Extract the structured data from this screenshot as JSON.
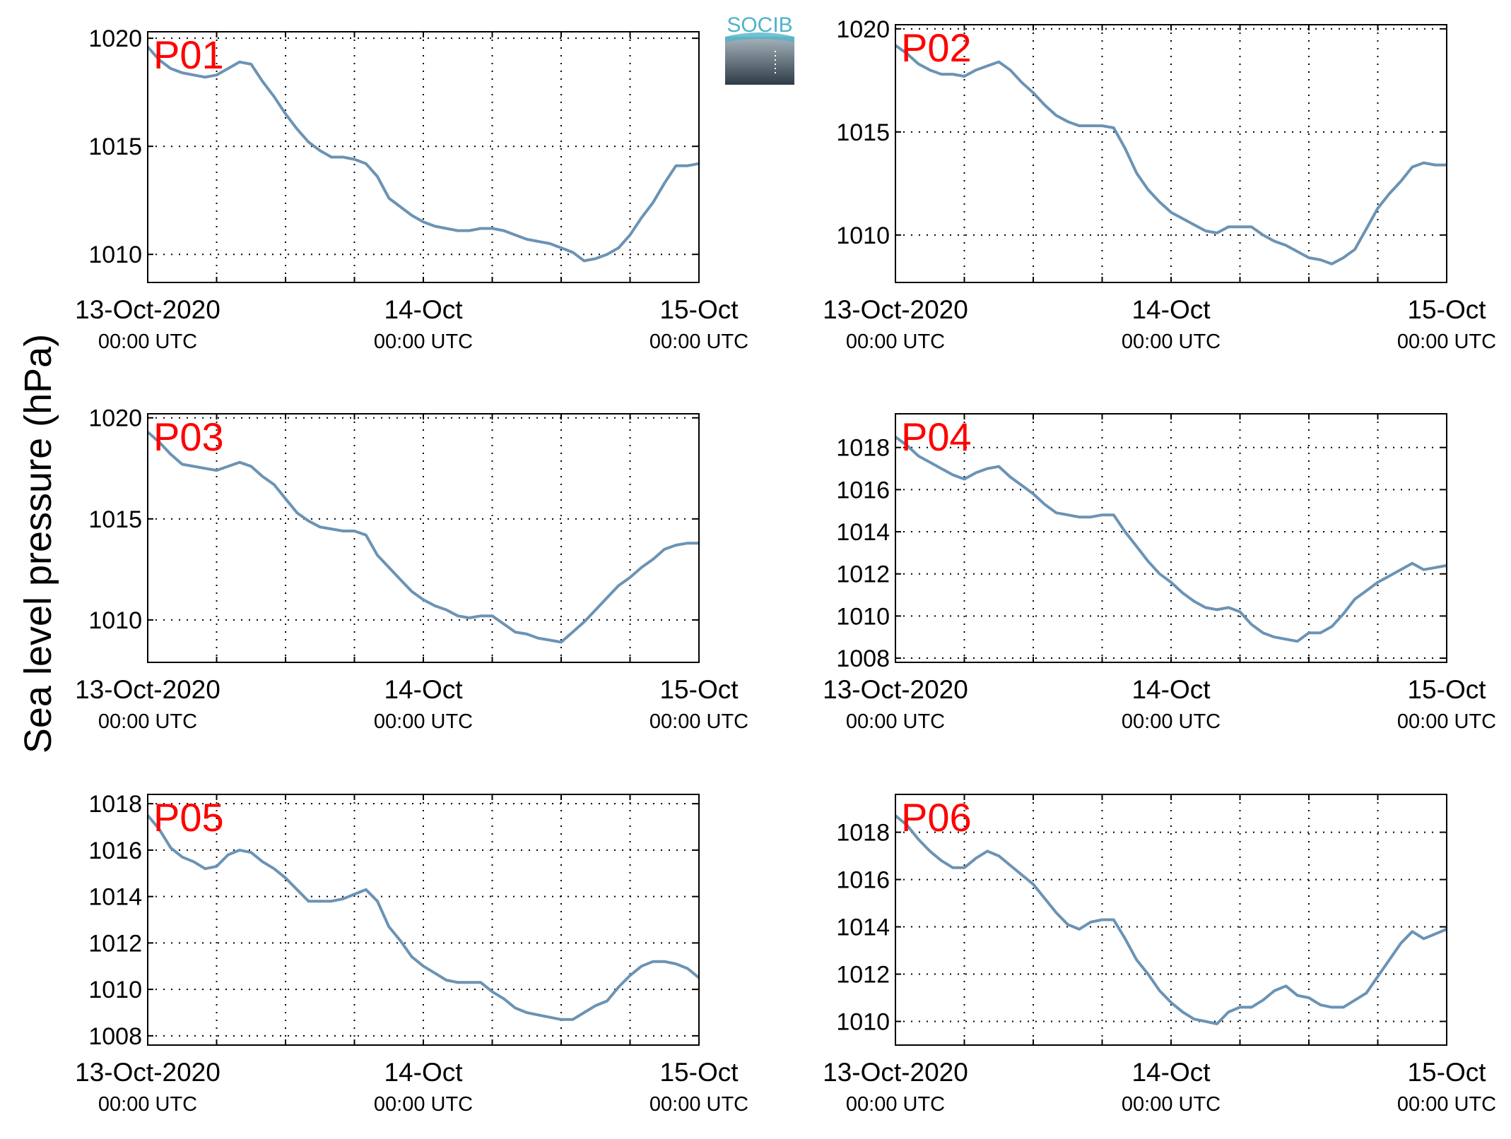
{
  "figure": {
    "ylabel": "Sea level pressure (hPa)",
    "logo_text": "SOCIB",
    "line_color": "#6b93b4",
    "panel_label_color": "#ff0000",
    "axis_color": "#000000",
    "logo_color": "#4fb3c8",
    "logo_fill": "#5f7380"
  },
  "chart_data": [
    {
      "type": "line",
      "panel_label": "P01",
      "xlim": [
        0,
        48
      ],
      "x_ticks": [
        0,
        24,
        48
      ],
      "x_tick_labels": [
        [
          "13-Oct-2020",
          "00:00 UTC"
        ],
        [
          "14-Oct",
          "00:00 UTC"
        ],
        [
          "15-Oct",
          "00:00 UTC"
        ]
      ],
      "x_grid_step_hours": 6,
      "ylim": [
        1008.7,
        1020.3
      ],
      "yticks": [
        1010,
        1015,
        1020
      ],
      "grid": true,
      "series": [
        {
          "x": [
            0,
            1,
            2,
            3,
            4,
            5,
            6,
            7,
            8,
            9,
            10,
            11,
            12,
            13,
            14,
            15,
            16,
            17,
            18,
            19,
            20,
            21,
            22,
            23,
            24,
            25,
            26,
            27,
            28,
            29,
            30,
            31,
            32,
            33,
            34,
            35,
            36,
            37,
            38,
            39,
            40,
            41,
            42,
            43,
            44,
            45,
            46,
            47,
            48
          ],
          "values": [
            1019.6,
            1019.0,
            1018.6,
            1018.4,
            1018.3,
            1018.2,
            1018.3,
            1018.6,
            1018.9,
            1018.8,
            1018.0,
            1017.3,
            1016.5,
            1015.8,
            1015.2,
            1014.8,
            1014.5,
            1014.5,
            1014.4,
            1014.2,
            1013.6,
            1012.6,
            1012.2,
            1011.8,
            1011.5,
            1011.3,
            1011.2,
            1011.1,
            1011.1,
            1011.2,
            1011.2,
            1011.1,
            1010.9,
            1010.7,
            1010.6,
            1010.5,
            1010.3,
            1010.1,
            1009.7,
            1009.8,
            1010.0,
            1010.3,
            1010.9,
            1011.7,
            1012.4,
            1013.3,
            1014.1,
            1014.1,
            1014.2
          ]
        }
      ]
    },
    {
      "type": "line",
      "panel_label": "P02",
      "xlim": [
        0,
        48
      ],
      "x_ticks": [
        0,
        24,
        48
      ],
      "x_tick_labels": [
        [
          "13-Oct-2020",
          "00:00 UTC"
        ],
        [
          "14-Oct",
          "00:00 UTC"
        ],
        [
          "15-Oct",
          "00:00 UTC"
        ]
      ],
      "x_grid_step_hours": 6,
      "ylim": [
        1007.7,
        1020.2
      ],
      "yticks": [
        1010,
        1015,
        1020
      ],
      "grid": true,
      "series": [
        {
          "x": [
            0,
            1,
            2,
            3,
            4,
            5,
            6,
            7,
            8,
            9,
            10,
            11,
            12,
            13,
            14,
            15,
            16,
            17,
            18,
            19,
            20,
            21,
            22,
            23,
            24,
            25,
            26,
            27,
            28,
            29,
            30,
            31,
            32,
            33,
            34,
            35,
            36,
            37,
            38,
            39,
            40,
            41,
            42,
            43,
            44,
            45,
            46,
            47,
            48
          ],
          "values": [
            1019.2,
            1018.8,
            1018.3,
            1018.0,
            1017.8,
            1017.8,
            1017.7,
            1018.0,
            1018.2,
            1018.4,
            1018.0,
            1017.4,
            1016.9,
            1016.3,
            1015.8,
            1015.5,
            1015.3,
            1015.3,
            1015.3,
            1015.2,
            1014.2,
            1013.0,
            1012.2,
            1011.6,
            1011.1,
            1010.8,
            1010.5,
            1010.2,
            1010.1,
            1010.4,
            1010.4,
            1010.4,
            1010.0,
            1009.7,
            1009.5,
            1009.2,
            1008.9,
            1008.8,
            1008.6,
            1008.9,
            1009.3,
            1010.3,
            1011.3,
            1012.0,
            1012.6,
            1013.3,
            1013.5,
            1013.4,
            1013.4
          ]
        }
      ]
    },
    {
      "type": "line",
      "panel_label": "P03",
      "xlim": [
        0,
        48
      ],
      "x_ticks": [
        0,
        24,
        48
      ],
      "x_tick_labels": [
        [
          "13-Oct-2020",
          "00:00 UTC"
        ],
        [
          "14-Oct",
          "00:00 UTC"
        ],
        [
          "15-Oct",
          "00:00 UTC"
        ]
      ],
      "x_grid_step_hours": 6,
      "ylim": [
        1007.9,
        1020.2
      ],
      "yticks": [
        1010,
        1015,
        1020
      ],
      "grid": true,
      "series": [
        {
          "x": [
            0,
            1,
            2,
            3,
            4,
            5,
            6,
            7,
            8,
            9,
            10,
            11,
            12,
            13,
            14,
            15,
            16,
            17,
            18,
            19,
            20,
            21,
            22,
            23,
            24,
            25,
            26,
            27,
            28,
            29,
            30,
            31,
            32,
            33,
            34,
            35,
            36,
            37,
            38,
            39,
            40,
            41,
            42,
            43,
            44,
            45,
            46,
            47,
            48
          ],
          "values": [
            1019.3,
            1018.8,
            1018.2,
            1017.7,
            1017.6,
            1017.5,
            1017.4,
            1017.6,
            1017.8,
            1017.6,
            1017.1,
            1016.7,
            1016.0,
            1015.3,
            1014.9,
            1014.6,
            1014.5,
            1014.4,
            1014.4,
            1014.2,
            1013.2,
            1012.6,
            1012.0,
            1011.4,
            1011.0,
            1010.7,
            1010.5,
            1010.2,
            1010.1,
            1010.2,
            1010.2,
            1009.8,
            1009.4,
            1009.3,
            1009.1,
            1009.0,
            1008.9,
            1009.4,
            1009.9,
            1010.5,
            1011.1,
            1011.7,
            1012.1,
            1012.6,
            1013.0,
            1013.5,
            1013.7,
            1013.8,
            1013.8
          ]
        }
      ]
    },
    {
      "type": "line",
      "panel_label": "P04",
      "xlim": [
        0,
        48
      ],
      "x_ticks": [
        0,
        24,
        48
      ],
      "x_tick_labels": [
        [
          "13-Oct-2020",
          "00:00 UTC"
        ],
        [
          "14-Oct",
          "00:00 UTC"
        ],
        [
          "15-Oct",
          "00:00 UTC"
        ]
      ],
      "x_grid_step_hours": 6,
      "ylim": [
        1007.8,
        1019.6
      ],
      "yticks": [
        1008,
        1010,
        1012,
        1014,
        1016,
        1018
      ],
      "grid": true,
      "series": [
        {
          "x": [
            0,
            1,
            2,
            3,
            4,
            5,
            6,
            7,
            8,
            9,
            10,
            11,
            12,
            13,
            14,
            15,
            16,
            17,
            18,
            19,
            20,
            21,
            22,
            23,
            24,
            25,
            26,
            27,
            28,
            29,
            30,
            31,
            32,
            33,
            34,
            35,
            36,
            37,
            38,
            39,
            40,
            41,
            42,
            43,
            44,
            45,
            46,
            47,
            48
          ],
          "values": [
            1018.5,
            1018.1,
            1017.6,
            1017.3,
            1017.0,
            1016.7,
            1016.5,
            1016.8,
            1017.0,
            1017.1,
            1016.6,
            1016.2,
            1015.8,
            1015.3,
            1014.9,
            1014.8,
            1014.7,
            1014.7,
            1014.8,
            1014.8,
            1014.0,
            1013.3,
            1012.6,
            1012.0,
            1011.6,
            1011.1,
            1010.7,
            1010.4,
            1010.3,
            1010.4,
            1010.2,
            1009.6,
            1009.2,
            1009.0,
            1008.9,
            1008.8,
            1009.2,
            1009.2,
            1009.5,
            1010.1,
            1010.8,
            1011.2,
            1011.6,
            1011.9,
            1012.2,
            1012.5,
            1012.2,
            1012.3,
            1012.4
          ]
        }
      ]
    },
    {
      "type": "line",
      "panel_label": "P05",
      "xlim": [
        0,
        48
      ],
      "x_ticks": [
        0,
        24,
        48
      ],
      "x_tick_labels": [
        [
          "13-Oct-2020",
          "00:00 UTC"
        ],
        [
          "14-Oct",
          "00:00 UTC"
        ],
        [
          "15-Oct",
          "00:00 UTC"
        ]
      ],
      "x_grid_step_hours": 6,
      "ylim": [
        1007.6,
        1018.4
      ],
      "yticks": [
        1008,
        1010,
        1012,
        1014,
        1016,
        1018
      ],
      "grid": true,
      "series": [
        {
          "x": [
            0,
            1,
            2,
            3,
            4,
            5,
            6,
            7,
            8,
            9,
            10,
            11,
            12,
            13,
            14,
            15,
            16,
            17,
            18,
            19,
            20,
            21,
            22,
            23,
            24,
            25,
            26,
            27,
            28,
            29,
            30,
            31,
            32,
            33,
            34,
            35,
            36,
            37,
            38,
            39,
            40,
            41,
            42,
            43,
            44,
            45,
            46,
            47,
            48
          ],
          "values": [
            1017.5,
            1016.9,
            1016.1,
            1015.7,
            1015.5,
            1015.2,
            1015.3,
            1015.8,
            1016.0,
            1015.9,
            1015.5,
            1015.2,
            1014.8,
            1014.3,
            1013.8,
            1013.8,
            1013.8,
            1013.9,
            1014.1,
            1014.3,
            1013.8,
            1012.7,
            1012.1,
            1011.4,
            1011.0,
            1010.7,
            1010.4,
            1010.3,
            1010.3,
            1010.3,
            1009.9,
            1009.6,
            1009.2,
            1009.0,
            1008.9,
            1008.8,
            1008.7,
            1008.7,
            1009.0,
            1009.3,
            1009.5,
            1010.1,
            1010.6,
            1011.0,
            1011.2,
            1011.2,
            1011.1,
            1010.9,
            1010.5
          ]
        }
      ]
    },
    {
      "type": "line",
      "panel_label": "P06",
      "xlim": [
        0,
        48
      ],
      "x_ticks": [
        0,
        24,
        48
      ],
      "x_tick_labels": [
        [
          "13-Oct-2020",
          "00:00 UTC"
        ],
        [
          "14-Oct",
          "00:00 UTC"
        ],
        [
          "15-Oct",
          "00:00 UTC"
        ]
      ],
      "x_grid_step_hours": 6,
      "ylim": [
        1009.0,
        1019.6
      ],
      "yticks": [
        1010,
        1012,
        1014,
        1016,
        1018
      ],
      "grid": true,
      "series": [
        {
          "x": [
            0,
            1,
            2,
            3,
            4,
            5,
            6,
            7,
            8,
            9,
            10,
            11,
            12,
            13,
            14,
            15,
            16,
            17,
            18,
            19,
            20,
            21,
            22,
            23,
            24,
            25,
            26,
            27,
            28,
            29,
            30,
            31,
            32,
            33,
            34,
            35,
            36,
            37,
            38,
            39,
            40,
            41,
            42,
            43,
            44,
            45,
            46,
            47,
            48
          ],
          "values": [
            1018.7,
            1018.3,
            1017.7,
            1017.2,
            1016.8,
            1016.5,
            1016.5,
            1016.9,
            1017.2,
            1017.0,
            1016.6,
            1016.2,
            1015.8,
            1015.2,
            1014.6,
            1014.1,
            1013.9,
            1014.2,
            1014.3,
            1014.3,
            1013.5,
            1012.6,
            1012.0,
            1011.3,
            1010.8,
            1010.4,
            1010.1,
            1010.0,
            1009.9,
            1010.4,
            1010.6,
            1010.6,
            1010.9,
            1011.3,
            1011.5,
            1011.1,
            1011.0,
            1010.7,
            1010.6,
            1010.6,
            1010.9,
            1011.2,
            1011.9,
            1012.6,
            1013.3,
            1013.8,
            1013.5,
            1013.7,
            1013.9
          ]
        }
      ]
    }
  ]
}
